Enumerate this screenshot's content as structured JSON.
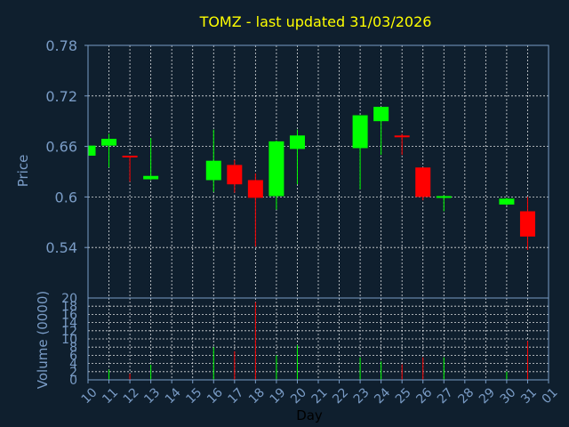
{
  "title": "TOMZ - last updated 31/03/2026",
  "colors": {
    "background": "#0f1f2e",
    "title": "#ffff00",
    "axis": "#7a9cc6",
    "grid": "#ffffff",
    "up": "#00ff00",
    "down": "#ff0000"
  },
  "chart_data": [
    {
      "type": "candlestick",
      "title": "TOMZ - last updated 31/03/2026",
      "ylabel": "Price",
      "ylim": [
        0.48,
        0.78
      ],
      "yticks": [
        "0.78",
        "0.72",
        "0.66",
        "0.6",
        "0.54"
      ],
      "ytick_values": [
        0.78,
        0.72,
        0.66,
        0.6,
        0.54
      ],
      "grid": true,
      "x": [
        "10",
        "11",
        "12",
        "13",
        "16",
        "17",
        "18",
        "19",
        "20",
        "23",
        "24",
        "25",
        "26",
        "27",
        "30",
        "31"
      ],
      "candles": [
        {
          "day": "10",
          "open": 0.649,
          "high": 0.661,
          "low": 0.649,
          "close": 0.661
        },
        {
          "day": "11",
          "open": 0.661,
          "high": 0.675,
          "low": 0.635,
          "close": 0.669
        },
        {
          "day": "12",
          "open": 0.649,
          "high": 0.649,
          "low": 0.618,
          "close": 0.648
        },
        {
          "day": "13",
          "open": 0.621,
          "high": 0.67,
          "low": 0.62,
          "close": 0.625
        },
        {
          "day": "16",
          "open": 0.62,
          "high": 0.68,
          "low": 0.606,
          "close": 0.643
        },
        {
          "day": "17",
          "open": 0.638,
          "high": 0.644,
          "low": 0.605,
          "close": 0.615
        },
        {
          "day": "18",
          "open": 0.62,
          "high": 0.628,
          "low": 0.541,
          "close": 0.599
        },
        {
          "day": "19",
          "open": 0.601,
          "high": 0.667,
          "low": 0.585,
          "close": 0.666
        },
        {
          "day": "20",
          "open": 0.657,
          "high": 0.68,
          "low": 0.615,
          "close": 0.673
        },
        {
          "day": "23",
          "open": 0.658,
          "high": 0.697,
          "low": 0.609,
          "close": 0.697
        },
        {
          "day": "24",
          "open": 0.69,
          "high": 0.707,
          "low": 0.65,
          "close": 0.707
        },
        {
          "day": "25",
          "open": 0.673,
          "high": 0.675,
          "low": 0.65,
          "close": 0.671
        },
        {
          "day": "26",
          "open": 0.635,
          "high": 0.635,
          "low": 0.596,
          "close": 0.6
        },
        {
          "day": "27",
          "open": 0.6,
          "high": 0.602,
          "low": 0.583,
          "close": 0.601
        },
        {
          "day": "30",
          "open": 0.591,
          "high": 0.599,
          "low": 0.59,
          "close": 0.598
        },
        {
          "day": "31",
          "open": 0.583,
          "high": 0.6,
          "low": 0.537,
          "close": 0.553
        }
      ]
    },
    {
      "type": "bar",
      "ylabel": "Volume (0000)",
      "xlabel": "Day",
      "ylim": [
        0,
        20
      ],
      "yticks": [
        "20",
        "18",
        "16",
        "14",
        "12",
        "10",
        "8",
        "6",
        "4",
        "2",
        "0"
      ],
      "ytick_values": [
        20,
        18,
        16,
        14,
        12,
        10,
        8,
        6,
        4,
        2,
        0
      ],
      "grid": true,
      "categories": [
        "10",
        "11",
        "12",
        "13",
        "14",
        "15",
        "16",
        "17",
        "18",
        "19",
        "20",
        "21",
        "22",
        "23",
        "24",
        "25",
        "26",
        "27",
        "28",
        "29",
        "30",
        "31",
        "01"
      ],
      "bars": [
        {
          "day": "10",
          "value": 0.3,
          "direction": "down"
        },
        {
          "day": "11",
          "value": 2.5,
          "direction": "up"
        },
        {
          "day": "12",
          "value": 1.5,
          "direction": "down"
        },
        {
          "day": "13",
          "value": 3.7,
          "direction": "up"
        },
        {
          "day": "16",
          "value": 8.0,
          "direction": "up"
        },
        {
          "day": "17",
          "value": 7.0,
          "direction": "down"
        },
        {
          "day": "18",
          "value": 19.0,
          "direction": "down"
        },
        {
          "day": "19",
          "value": 6.0,
          "direction": "up"
        },
        {
          "day": "20",
          "value": 8.5,
          "direction": "up"
        },
        {
          "day": "23",
          "value": 5.5,
          "direction": "up"
        },
        {
          "day": "24",
          "value": 4.5,
          "direction": "up"
        },
        {
          "day": "25",
          "value": 3.8,
          "direction": "down"
        },
        {
          "day": "26",
          "value": 5.5,
          "direction": "down"
        },
        {
          "day": "27",
          "value": 5.5,
          "direction": "up"
        },
        {
          "day": "30",
          "value": 2.0,
          "direction": "up"
        },
        {
          "day": "31",
          "value": 9.5,
          "direction": "down"
        }
      ]
    }
  ]
}
